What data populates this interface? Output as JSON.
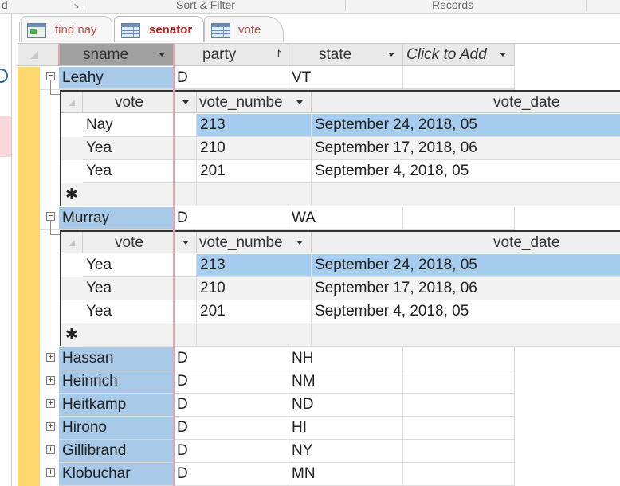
{
  "ribbon": {
    "left_fragment": "d",
    "group_sort_filter": "Sort & Filter",
    "group_records": "Records"
  },
  "tabs": [
    {
      "label": "find nay",
      "icon": "query-icon",
      "active": false
    },
    {
      "label": "senator",
      "icon": "table-icon",
      "active": true
    },
    {
      "label": "vote",
      "icon": "table-icon",
      "active": false
    }
  ],
  "main_table": {
    "columns": [
      "sname",
      "party",
      "state",
      "Click to Add"
    ],
    "sort_indicator": "party"
  },
  "subdatasheet": {
    "columns": [
      "vote",
      "vote_numbe",
      "vote_date"
    ],
    "new_row_marker": "✱"
  },
  "expanded_records": [
    {
      "sname": "Leahy",
      "party": "D",
      "state": "VT",
      "votes": [
        {
          "vote": "Nay",
          "vote_number": "213",
          "vote_date": "September 24, 2018,  05"
        },
        {
          "vote": "Yea",
          "vote_number": "210",
          "vote_date": "September 17, 2018,  06"
        },
        {
          "vote": "Yea",
          "vote_number": "201",
          "vote_date": "September 4, 2018,  05"
        }
      ]
    },
    {
      "sname": "Murray",
      "party": "D",
      "state": "WA",
      "votes": [
        {
          "vote": "Yea",
          "vote_number": "213",
          "vote_date": "September 24, 2018,  05"
        },
        {
          "vote": "Yea",
          "vote_number": "210",
          "vote_date": "September 17, 2018,  06"
        },
        {
          "vote": "Yea",
          "vote_number": "201",
          "vote_date": "September 4, 2018,  05"
        }
      ]
    }
  ],
  "collapsed_records": [
    {
      "sname": "Hassan",
      "party": "D",
      "state": "NH"
    },
    {
      "sname": "Heinrich",
      "party": "D",
      "state": "NM"
    },
    {
      "sname": "Heitkamp",
      "party": "D",
      "state": "ND"
    },
    {
      "sname": "Hirono",
      "party": "D",
      "state": "HI"
    },
    {
      "sname": "Gillibrand",
      "party": "D",
      "state": "NY"
    },
    {
      "sname": "Klobuchar",
      "party": "D",
      "state": "MN"
    }
  ],
  "colors": {
    "record_selector": "#fed86f",
    "selected_cell": "#a6cdef",
    "tab_text": "#c0504d"
  }
}
